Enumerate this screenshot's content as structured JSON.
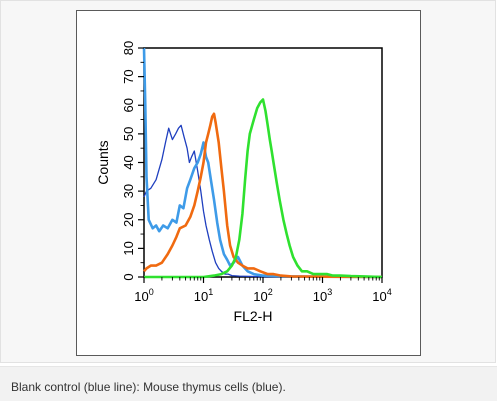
{
  "caption": "Blank control (blue line): Mouse thymus cells (blue).",
  "chart_data": {
    "type": "line",
    "title": "",
    "xlabel": "FL2-H",
    "ylabel": "Counts",
    "xscale": "log",
    "xlim": [
      1,
      10000
    ],
    "ylim": [
      0,
      80
    ],
    "x_ticks": [
      {
        "base": "10",
        "exp": "0",
        "value": 1
      },
      {
        "base": "10",
        "exp": "1",
        "value": 10
      },
      {
        "base": "10",
        "exp": "2",
        "value": 100
      },
      {
        "base": "10",
        "exp": "3",
        "value": 1000
      },
      {
        "base": "10",
        "exp": "4",
        "value": 10000
      }
    ],
    "y_ticks": [
      "0",
      "10",
      "20",
      "30",
      "40",
      "50",
      "60",
      "70",
      "80"
    ],
    "grid": false,
    "legend": "none",
    "series": [
      {
        "color": "#1f3fbf",
        "x": [
          1,
          1.1,
          1.3,
          1.6,
          2.0,
          2.3,
          2.6,
          3.0,
          3.4,
          3.8,
          4.2,
          4.7,
          5.3,
          5.8,
          6.3,
          7.0,
          8.0,
          9.0,
          10,
          11,
          12.5,
          14,
          16,
          18,
          20,
          23,
          26,
          30,
          40,
          60,
          100,
          300,
          1000,
          10000
        ],
        "y": [
          28,
          30,
          31,
          34,
          41,
          47,
          52,
          48,
          50,
          52,
          53,
          49,
          45,
          40,
          42,
          44,
          37,
          30,
          23,
          18,
          13,
          9,
          5,
          3,
          2,
          1,
          1,
          0.5,
          0.3,
          0.2,
          0.1,
          0,
          0,
          0
        ]
      },
      {
        "color": "#3e9be8",
        "x": [
          1,
          1.05,
          1.1,
          1.2,
          1.4,
          1.6,
          1.8,
          2.1,
          2.5,
          3.0,
          3.5,
          4.0,
          4.6,
          5.3,
          6.0,
          7.0,
          8.0,
          9.0,
          10,
          11,
          12,
          13.5,
          15,
          17,
          19,
          22,
          25,
          28,
          32,
          38,
          45,
          55,
          70,
          100,
          300,
          1000,
          10000
        ],
        "y": [
          80,
          60,
          35,
          20,
          17,
          18,
          16,
          18,
          17,
          20,
          19,
          25,
          24,
          31,
          34,
          38,
          40,
          43,
          47,
          42,
          40,
          33,
          27,
          19,
          13,
          8,
          6,
          4,
          5,
          7,
          4,
          2,
          1,
          0.5,
          0.2,
          0.1,
          0
        ]
      },
      {
        "color": "#f06a10",
        "x": [
          1,
          1.1,
          1.3,
          1.6,
          2.0,
          2.5,
          3.0,
          3.5,
          4.0,
          5.0,
          6.0,
          7.0,
          8.0,
          9.0,
          10,
          11,
          12,
          13,
          14,
          15,
          16,
          18,
          20,
          22,
          25,
          28,
          32,
          38,
          45,
          55,
          70,
          90,
          120,
          150,
          200,
          300,
          1000,
          10000
        ],
        "y": [
          2,
          3,
          4,
          4,
          5,
          8,
          11,
          14,
          17,
          18,
          21,
          25,
          30,
          35,
          40,
          47,
          50,
          53,
          56,
          57,
          54,
          47,
          38,
          30,
          18,
          11,
          7,
          5,
          4,
          3,
          3,
          2,
          1,
          1,
          0.5,
          0.2,
          0.1,
          0
        ]
      },
      {
        "color": "#2fe12f",
        "x": [
          1,
          10,
          15,
          20,
          25,
          30,
          35,
          40,
          45,
          50,
          55,
          60,
          70,
          80,
          90,
          100,
          110,
          120,
          130,
          140,
          150,
          170,
          190,
          220,
          250,
          280,
          320,
          380,
          450,
          550,
          700,
          900,
          1200,
          1500,
          2000,
          3000,
          5000,
          10000
        ],
        "y": [
          0,
          0,
          0.5,
          1,
          2,
          4,
          7,
          13,
          22,
          34,
          44,
          50,
          55,
          59,
          61,
          62,
          58,
          53,
          48,
          44,
          40,
          33,
          27,
          20,
          15,
          11,
          7,
          4,
          2,
          2,
          1,
          1,
          1,
          0.5,
          0.5,
          0.3,
          0.2,
          0
        ]
      }
    ]
  }
}
